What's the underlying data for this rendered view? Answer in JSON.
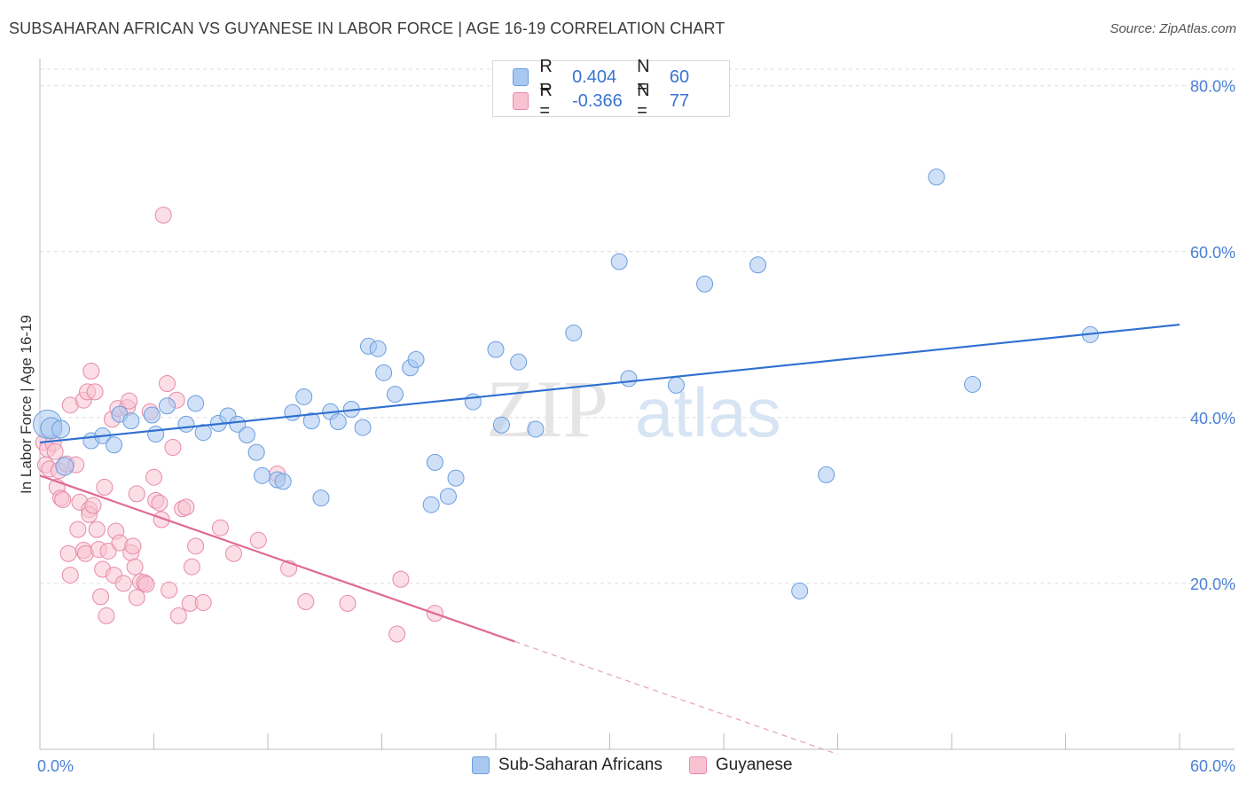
{
  "header": {
    "title": "SUBSAHARAN AFRICAN VS GUYANESE IN LABOR FORCE | AGE 16-19 CORRELATION CHART",
    "source": "Source: ZipAtlas.com"
  },
  "watermark": {
    "zip": "ZIP",
    "atlas": "atlas"
  },
  "legend": {
    "rows": [
      {
        "r_label": "R =",
        "r_value": "0.404",
        "n_label": "N =",
        "n_value": "60",
        "color": "#a9c8f0",
        "border": "#6a9de0"
      },
      {
        "r_label": "R =",
        "r_value": "-0.366",
        "n_label": "N =",
        "n_value": "77",
        "color": "#f8c2d2",
        "border": "#e88aa8"
      }
    ]
  },
  "bottom_legend": {
    "items": [
      {
        "label": "Sub-Saharan Africans",
        "color": "#a9c8f0",
        "border": "#6a9de0"
      },
      {
        "label": "Guyanese",
        "color": "#f8c2d2",
        "border": "#e88aa8"
      }
    ]
  },
  "chart_data": {
    "type": "scatter",
    "title": "SUBSAHARAN AFRICAN VS GUYANESE IN LABOR FORCE | AGE 16-19 CORRELATION CHART",
    "ylabel": "In Labor Force | Age 16-19",
    "xlabel": "",
    "xlim": [
      0,
      60
    ],
    "ylim": [
      0,
      82
    ],
    "x_ticks": [
      {
        "value": 0,
        "label": "0.0%"
      },
      {
        "value": 60,
        "label": "60.0%"
      }
    ],
    "y_ticks": [
      {
        "value": 20,
        "label": "20.0%"
      },
      {
        "value": 40,
        "label": "40.0%"
      },
      {
        "value": 60,
        "label": "60.0%"
      },
      {
        "value": 80,
        "label": "80.0%"
      }
    ],
    "grid": true,
    "series": [
      {
        "name": "Sub-Saharan Africans",
        "color": "#6a9de0",
        "fill": "#a9c8f0",
        "trend": {
          "x0": 0,
          "y0": 37.0,
          "x1": 60,
          "y1": 51.2
        },
        "points": [
          [
            0.4,
            39.2,
            16
          ],
          [
            0.6,
            38.7,
            12
          ],
          [
            1.1,
            38.6,
            10
          ],
          [
            1.3,
            34.1,
            10
          ],
          [
            2.7,
            37.2,
            9
          ],
          [
            3.3,
            37.8,
            9
          ],
          [
            3.9,
            36.7,
            9
          ],
          [
            4.2,
            40.4,
            9
          ],
          [
            4.8,
            39.6,
            9
          ],
          [
            5.9,
            40.3,
            9
          ],
          [
            6.1,
            38.0,
            9
          ],
          [
            6.7,
            41.4,
            9
          ],
          [
            7.7,
            39.2,
            9
          ],
          [
            8.2,
            41.7,
            9
          ],
          [
            8.6,
            38.2,
            9
          ],
          [
            9.4,
            39.3,
            9
          ],
          [
            9.9,
            40.2,
            9
          ],
          [
            10.4,
            39.2,
            9
          ],
          [
            10.9,
            37.9,
            9
          ],
          [
            11.4,
            35.8,
            9
          ],
          [
            11.7,
            33.0,
            9
          ],
          [
            12.5,
            32.5,
            9
          ],
          [
            12.8,
            32.3,
            9
          ],
          [
            13.3,
            40.6,
            9
          ],
          [
            13.9,
            42.5,
            9
          ],
          [
            14.3,
            39.6,
            9
          ],
          [
            14.8,
            30.3,
            9
          ],
          [
            15.3,
            40.7,
            9
          ],
          [
            15.7,
            39.5,
            9
          ],
          [
            16.4,
            41.0,
            9
          ],
          [
            17.0,
            38.8,
            9
          ],
          [
            17.3,
            48.6,
            9
          ],
          [
            17.8,
            48.3,
            9
          ],
          [
            18.1,
            45.4,
            9
          ],
          [
            18.7,
            42.8,
            9
          ],
          [
            19.5,
            46.0,
            9
          ],
          [
            19.8,
            47.0,
            9
          ],
          [
            20.6,
            29.5,
            9
          ],
          [
            20.8,
            34.6,
            9
          ],
          [
            21.5,
            30.5,
            9
          ],
          [
            21.9,
            32.7,
            9
          ],
          [
            22.8,
            41.9,
            9
          ],
          [
            24.0,
            48.2,
            9
          ],
          [
            24.3,
            39.1,
            9
          ],
          [
            25.2,
            46.7,
            9
          ],
          [
            26.1,
            38.6,
            9
          ],
          [
            28.1,
            50.2,
            9
          ],
          [
            30.5,
            58.8,
            9
          ],
          [
            31.0,
            44.7,
            9
          ],
          [
            33.5,
            43.9,
            9
          ],
          [
            35.0,
            56.1,
            9
          ],
          [
            37.8,
            58.4,
            9
          ],
          [
            40.0,
            19.1,
            9
          ],
          [
            41.4,
            33.1,
            9
          ],
          [
            47.2,
            69.0,
            9
          ],
          [
            49.1,
            44.0,
            9
          ],
          [
            55.3,
            50.0,
            9
          ]
        ]
      },
      {
        "name": "Guyanese",
        "color": "#e88aa8",
        "fill": "#f8c2d2",
        "trend": {
          "x0": 0,
          "y0": 33.0,
          "x1": 25.0,
          "y1": 13.0,
          "dash_to_x": 42.0,
          "dash_to_y": -0.6
        },
        "points": [
          [
            0.2,
            37.0,
            9
          ],
          [
            0.3,
            34.3,
            9
          ],
          [
            0.4,
            36.2,
            9
          ],
          [
            0.5,
            33.8,
            9
          ],
          [
            0.7,
            36.9,
            9
          ],
          [
            0.8,
            35.9,
            9
          ],
          [
            0.9,
            31.6,
            9
          ],
          [
            1.0,
            33.6,
            9
          ],
          [
            1.1,
            30.3,
            9
          ],
          [
            1.2,
            30.1,
            9
          ],
          [
            1.4,
            34.4,
            9
          ],
          [
            1.5,
            23.6,
            9
          ],
          [
            1.6,
            21.0,
            9
          ],
          [
            1.6,
            41.5,
            9
          ],
          [
            1.9,
            34.3,
            9
          ],
          [
            2.0,
            26.5,
            9
          ],
          [
            2.1,
            29.8,
            9
          ],
          [
            2.3,
            24.0,
            9
          ],
          [
            2.4,
            23.6,
            9
          ],
          [
            2.3,
            42.1,
            9
          ],
          [
            2.5,
            43.1,
            9
          ],
          [
            2.6,
            28.9,
            9
          ],
          [
            2.6,
            28.3,
            9
          ],
          [
            2.7,
            45.6,
            9
          ],
          [
            2.8,
            29.4,
            9
          ],
          [
            2.9,
            43.1,
            9
          ],
          [
            3.0,
            26.5,
            9
          ],
          [
            3.1,
            24.1,
            9
          ],
          [
            3.2,
            18.4,
            9
          ],
          [
            3.3,
            21.7,
            9
          ],
          [
            3.4,
            31.6,
            9
          ],
          [
            3.5,
            16.1,
            9
          ],
          [
            3.6,
            23.9,
            9
          ],
          [
            3.8,
            39.8,
            9
          ],
          [
            3.9,
            21.0,
            9
          ],
          [
            4.0,
            26.3,
            9
          ],
          [
            4.1,
            41.1,
            9
          ],
          [
            4.2,
            24.9,
            9
          ],
          [
            4.4,
            20.0,
            9
          ],
          [
            4.6,
            41.2,
            9
          ],
          [
            4.7,
            42.0,
            9
          ],
          [
            4.8,
            23.7,
            9
          ],
          [
            4.9,
            24.5,
            9
          ],
          [
            5.0,
            22.0,
            9
          ],
          [
            5.1,
            30.8,
            9
          ],
          [
            5.1,
            18.3,
            9
          ],
          [
            5.3,
            20.2,
            9
          ],
          [
            5.5,
            20.1,
            9
          ],
          [
            5.6,
            19.9,
            9
          ],
          [
            5.8,
            40.7,
            9
          ],
          [
            6.0,
            32.8,
            9
          ],
          [
            6.1,
            30.0,
            9
          ],
          [
            6.3,
            29.7,
            9
          ],
          [
            6.4,
            27.7,
            9
          ],
          [
            6.5,
            64.4,
            9
          ],
          [
            6.7,
            44.1,
            9
          ],
          [
            6.8,
            19.2,
            9
          ],
          [
            7.0,
            36.4,
            9
          ],
          [
            7.2,
            42.1,
            9
          ],
          [
            7.3,
            16.1,
            9
          ],
          [
            7.5,
            29.0,
            9
          ],
          [
            7.7,
            29.2,
            9
          ],
          [
            7.9,
            17.6,
            9
          ],
          [
            8.0,
            22.0,
            9
          ],
          [
            8.2,
            24.5,
            9
          ],
          [
            8.6,
            17.7,
            9
          ],
          [
            9.5,
            26.7,
            9
          ],
          [
            10.2,
            23.6,
            9
          ],
          [
            11.5,
            25.2,
            9
          ],
          [
            12.5,
            33.2,
            9
          ],
          [
            13.1,
            21.8,
            9
          ],
          [
            14.0,
            17.8,
            9
          ],
          [
            16.2,
            17.6,
            9
          ],
          [
            18.8,
            13.9,
            9
          ],
          [
            19.0,
            20.5,
            9
          ],
          [
            20.8,
            16.4,
            9
          ]
        ]
      }
    ]
  }
}
